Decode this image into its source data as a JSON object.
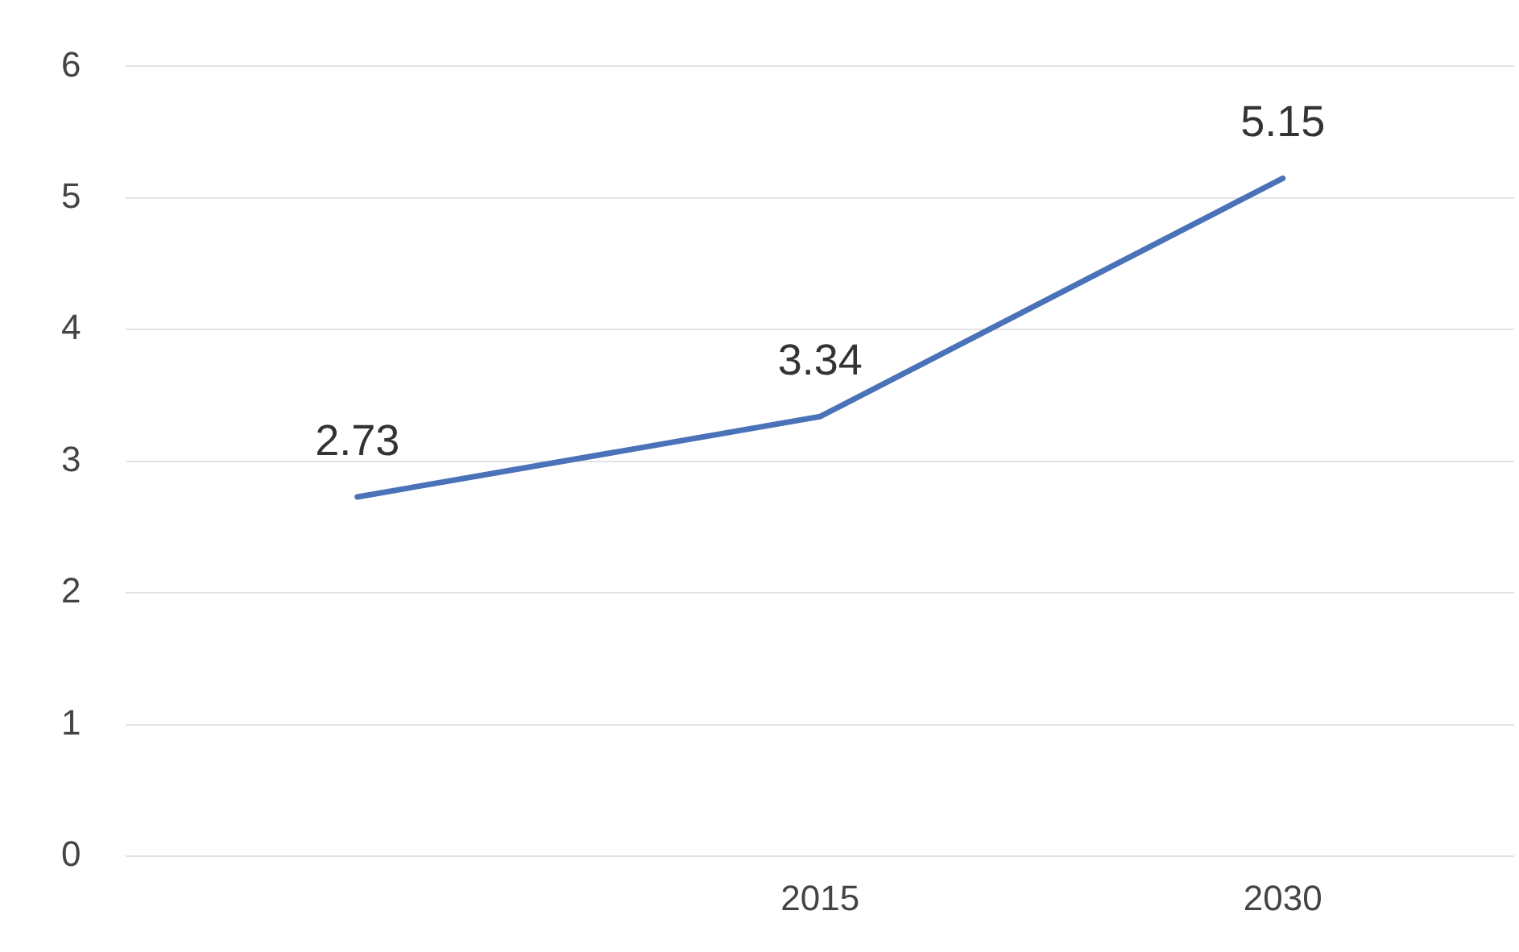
{
  "chart_data": {
    "type": "line",
    "categories": [
      null,
      "2015",
      "2030"
    ],
    "series": [
      {
        "color": "#4a72b8",
        "values": [
          2.73,
          3.34,
          5.15
        ]
      }
    ],
    "ylim": [
      0,
      6
    ],
    "yticks": [
      0,
      1,
      2,
      3,
      4,
      5,
      6
    ],
    "grid": "y",
    "legend": false,
    "marker": "none",
    "line_style": "solid",
    "data_labels": true
  }
}
